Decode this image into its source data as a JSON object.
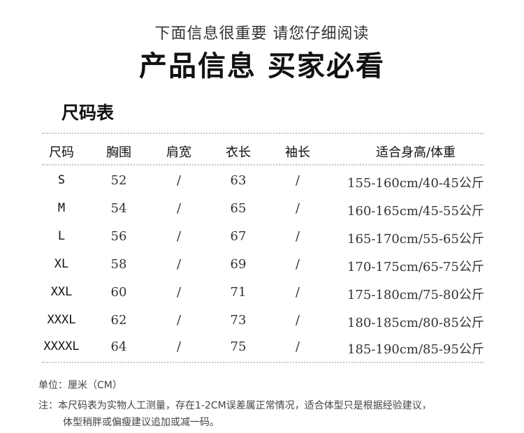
{
  "subtitle": "下面信息很重要  请您仔细阅读",
  "title": "产品信息 买家必看",
  "section_title": "尺码表",
  "table": {
    "headers": [
      "尺码",
      "胸围",
      "肩宽",
      "衣长",
      "袖长",
      "适合身高/体重"
    ],
    "rows": [
      [
        "S",
        "52",
        "/",
        "63",
        "/",
        "155-160cm/40-45公斤"
      ],
      [
        "M",
        "54",
        "/",
        "65",
        "/",
        "160-165cm/45-55公斤"
      ],
      [
        "L",
        "56",
        "/",
        "67",
        "/",
        "165-170cm/55-65公斤"
      ],
      [
        "XL",
        "58",
        "/",
        "69",
        "/",
        "170-175cm/65-75公斤"
      ],
      [
        "XXL",
        "60",
        "/",
        "71",
        "/",
        "175-180cm/75-80公斤"
      ],
      [
        "XXXL",
        "62",
        "/",
        "73",
        "/",
        "180-185cm/80-85公斤"
      ],
      [
        "XXXXL",
        "64",
        "/",
        "75",
        "/",
        "185-190cm/85-95公斤"
      ]
    ]
  },
  "notes": {
    "unit": "单位：厘米（CM）",
    "note_line1": "注：本尺码表为实物人工测量，存在1-2CM误差属正常情况，适合体型只是根据经验建议，",
    "note_line2": "体型稍胖或偏瘦建议追加或减一码。"
  }
}
